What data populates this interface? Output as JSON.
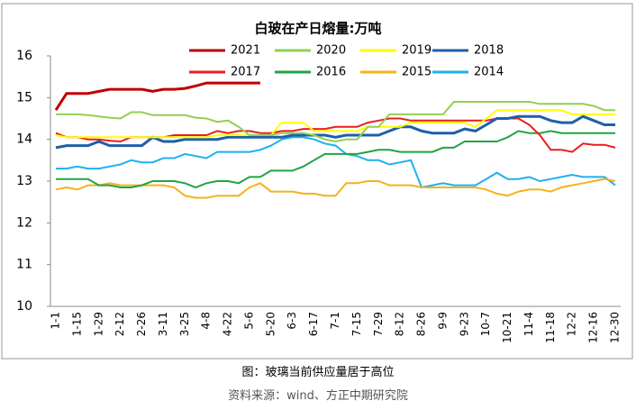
{
  "chart_data": {
    "type": "line",
    "title": "白玻在产日熔量:万吨",
    "categories": [
      "1-1",
      null,
      "1-15",
      null,
      "1-29",
      null,
      "2-12",
      null,
      "2-26",
      null,
      "3-11",
      null,
      "3-25",
      null,
      "4-8",
      null,
      "4-22",
      null,
      "5-6",
      null,
      "5-20",
      null,
      "6-3",
      null,
      "6-17",
      null,
      "7-1",
      null,
      "7-15",
      null,
      "7-29",
      null,
      "8-12",
      null,
      "8-26",
      null,
      "9-9",
      null,
      "9-23",
      null,
      "10-7",
      null,
      "10-21",
      null,
      "11-4",
      null,
      "11-18",
      null,
      "12-2",
      null,
      "12-16",
      null,
      "12-30"
    ],
    "ylim": [
      10,
      16
    ],
    "yticks": [
      10,
      11,
      12,
      13,
      14,
      15,
      16
    ],
    "grid": false,
    "series": [
      {
        "name": "2021",
        "color": "#c00000",
        "values": [
          14.7,
          15.1,
          15.1,
          15.1,
          15.15,
          15.2,
          15.2,
          15.2,
          15.2,
          15.15,
          15.2,
          15.2,
          15.22,
          15.28,
          15.35,
          15.35,
          15.35,
          15.35,
          15.35,
          15.35,
          null,
          null,
          null,
          null,
          null,
          null,
          null,
          null,
          null,
          null,
          null,
          null,
          null,
          null,
          null,
          null,
          null,
          null,
          null,
          null,
          null,
          null,
          null,
          null,
          null,
          null,
          null,
          null,
          null,
          null,
          null,
          null,
          null
        ]
      },
      {
        "name": "2020",
        "color": "#92d050",
        "values": [
          14.6,
          14.6,
          14.6,
          14.58,
          14.55,
          14.52,
          14.5,
          14.65,
          14.65,
          14.58,
          14.58,
          14.58,
          14.58,
          14.52,
          14.5,
          14.42,
          14.45,
          14.3,
          14.1,
          14.1,
          14.1,
          14.15,
          14.15,
          14.15,
          14.1,
          14.0,
          13.95,
          14.0,
          14.0,
          14.3,
          14.3,
          14.6,
          14.6,
          14.6,
          14.6,
          14.6,
          14.6,
          14.9,
          14.9,
          14.9,
          14.9,
          14.9,
          14.9,
          14.9,
          14.9,
          14.85,
          14.85,
          14.85,
          14.85,
          14.85,
          14.8,
          14.7,
          14.7
        ]
      },
      {
        "name": "2019",
        "color": "#ffff00",
        "values": [
          14.1,
          14.05,
          14.05,
          14.05,
          14.05,
          14.05,
          14.05,
          14.05,
          14.05,
          14.05,
          14.05,
          14.05,
          14.05,
          14.05,
          14.05,
          14.1,
          14.1,
          14.1,
          14.1,
          14.1,
          14.1,
          14.4,
          14.4,
          14.4,
          14.2,
          14.2,
          14.2,
          14.2,
          14.2,
          14.3,
          14.3,
          14.3,
          14.3,
          14.4,
          14.4,
          14.4,
          14.4,
          14.4,
          14.4,
          14.3,
          14.5,
          14.7,
          14.7,
          14.7,
          14.7,
          14.7,
          14.7,
          14.7,
          14.6,
          14.6,
          14.6,
          14.6,
          14.6
        ]
      },
      {
        "name": "2018",
        "color": "#1f5fa8",
        "values": [
          13.8,
          13.85,
          13.85,
          13.85,
          13.95,
          13.85,
          13.85,
          13.85,
          13.85,
          14.05,
          13.95,
          13.95,
          14.0,
          14.0,
          14.0,
          14.0,
          14.05,
          14.05,
          14.05,
          14.05,
          14.05,
          14.05,
          14.1,
          14.1,
          14.1,
          14.1,
          14.05,
          14.1,
          14.1,
          14.1,
          14.1,
          14.2,
          14.3,
          14.3,
          14.2,
          14.15,
          14.15,
          14.15,
          14.25,
          14.2,
          14.35,
          14.5,
          14.5,
          14.55,
          14.55,
          14.55,
          14.45,
          14.4,
          14.4,
          14.55,
          14.45,
          14.35,
          14.35
        ]
      },
      {
        "name": "2017",
        "color": "#ee1c1c",
        "values": [
          14.15,
          14.05,
          14.05,
          14.0,
          14.0,
          13.97,
          13.95,
          14.05,
          14.05,
          14.05,
          14.05,
          14.1,
          14.1,
          14.1,
          14.1,
          14.2,
          14.15,
          14.2,
          14.2,
          14.15,
          14.15,
          14.2,
          14.2,
          14.25,
          14.25,
          14.25,
          14.3,
          14.3,
          14.3,
          14.4,
          14.45,
          14.5,
          14.5,
          14.45,
          14.45,
          14.45,
          14.45,
          14.45,
          14.45,
          14.45,
          14.45,
          14.5,
          14.5,
          14.5,
          14.35,
          14.1,
          13.75,
          13.75,
          13.7,
          13.9,
          13.87,
          13.87,
          13.8
        ]
      },
      {
        "name": "2016",
        "color": "#21a345",
        "values": [
          13.05,
          13.05,
          13.05,
          13.05,
          12.9,
          12.9,
          12.85,
          12.85,
          12.9,
          13.0,
          13.0,
          13.0,
          12.95,
          12.85,
          12.95,
          13.0,
          13.0,
          12.95,
          13.1,
          13.1,
          13.25,
          13.25,
          13.25,
          13.35,
          13.5,
          13.65,
          13.65,
          13.65,
          13.65,
          13.7,
          13.75,
          13.75,
          13.7,
          13.7,
          13.7,
          13.7,
          13.8,
          13.8,
          13.95,
          13.95,
          13.95,
          13.95,
          14.05,
          14.2,
          14.15,
          14.15,
          14.2,
          14.15,
          14.15,
          14.15,
          14.15,
          14.15,
          14.15
        ]
      },
      {
        "name": "2015",
        "color": "#f5b21a",
        "values": [
          12.8,
          12.85,
          12.8,
          12.9,
          12.9,
          12.95,
          12.9,
          12.9,
          12.9,
          12.9,
          12.9,
          12.85,
          12.65,
          12.6,
          12.6,
          12.65,
          12.65,
          12.65,
          12.85,
          12.95,
          12.75,
          12.75,
          12.75,
          12.7,
          12.7,
          12.65,
          12.65,
          12.95,
          12.95,
          13.0,
          13.0,
          12.9,
          12.9,
          12.9,
          12.85,
          12.85,
          12.85,
          12.85,
          12.85,
          12.85,
          12.8,
          12.7,
          12.65,
          12.75,
          12.8,
          12.8,
          12.75,
          12.85,
          12.9,
          12.95,
          13.0,
          13.05,
          13.0
        ]
      },
      {
        "name": "2014",
        "color": "#1fb0ee",
        "values": [
          13.3,
          13.3,
          13.35,
          13.3,
          13.3,
          13.35,
          13.4,
          13.5,
          13.45,
          13.45,
          13.55,
          13.55,
          13.65,
          13.6,
          13.55,
          13.7,
          13.7,
          13.7,
          13.7,
          13.75,
          13.85,
          14.0,
          14.05,
          14.05,
          14.0,
          13.9,
          13.85,
          13.65,
          13.6,
          13.5,
          13.5,
          13.4,
          13.45,
          13.5,
          12.85,
          12.9,
          12.95,
          12.9,
          12.9,
          12.9,
          13.05,
          13.2,
          13.05,
          13.05,
          13.1,
          13.0,
          13.05,
          13.1,
          13.15,
          13.1,
          13.1,
          13.1,
          12.9
        ]
      }
    ]
  },
  "caption": "图：玻璃当前供应量居于高位",
  "source": "资料来源：wind、方正中期研究院"
}
